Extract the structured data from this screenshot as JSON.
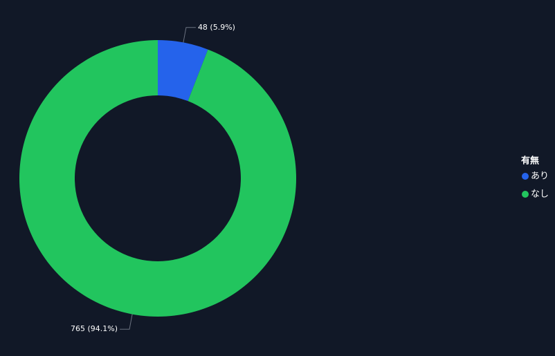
{
  "chart_data": {
    "type": "pie",
    "categories": [
      "あり",
      "なし"
    ],
    "values": [
      48,
      765
    ],
    "value_labels": [
      "48 (5.9%)",
      "765 (94.1%)"
    ],
    "colors": [
      "#2563eb",
      "#22c55e"
    ],
    "legend_title": "有無",
    "legend": "right"
  }
}
